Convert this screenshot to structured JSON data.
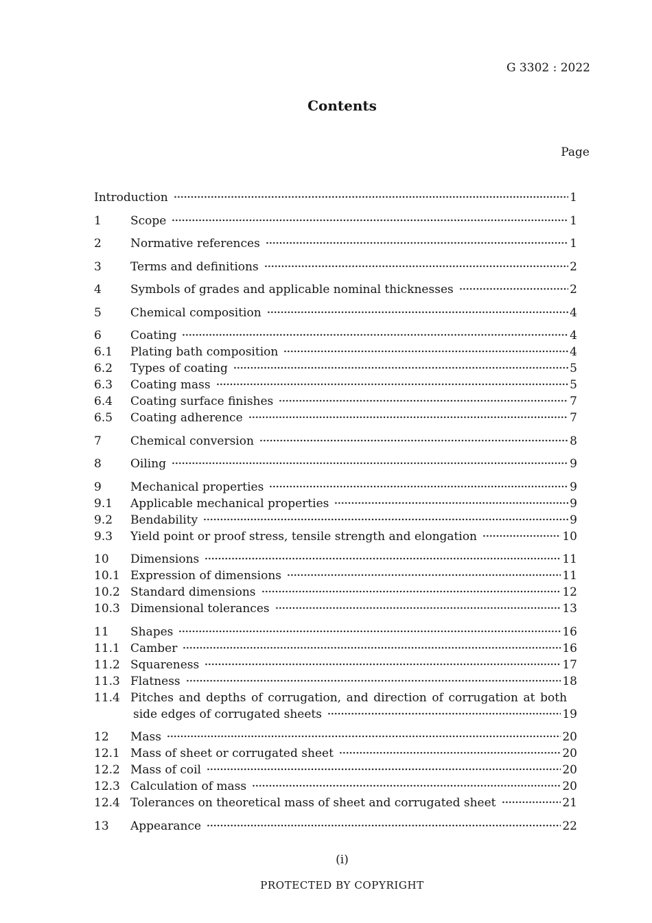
{
  "doc": {
    "code": "G 3302 : 2022",
    "title": "Contents",
    "page_label": "Page",
    "page_indicator": "(i)",
    "copyright": "PROTECTED BY COPYRIGHT"
  },
  "toc": {
    "entries": [
      {
        "num": "",
        "title": "Introduction",
        "page": "1"
      },
      {
        "num": "1",
        "title": "Scope",
        "page": "1"
      },
      {
        "num": "2",
        "title": "Normative references",
        "page": "1"
      },
      {
        "num": "3",
        "title": "Terms and definitions",
        "page": "2"
      },
      {
        "num": "4",
        "title": "Symbols of grades and applicable nominal thicknesses",
        "page": "2"
      },
      {
        "num": "5",
        "title": "Chemical composition",
        "page": "4"
      },
      {
        "num": "6",
        "title": "Coating",
        "page": "4"
      },
      {
        "num": "6.1",
        "title": "Plating bath composition",
        "page": "4"
      },
      {
        "num": "6.2",
        "title": "Types of coating",
        "page": "5"
      },
      {
        "num": "6.3",
        "title": "Coating mass",
        "page": "5"
      },
      {
        "num": "6.4",
        "title": "Coating surface finishes",
        "page": "7"
      },
      {
        "num": "6.5",
        "title": "Coating adherence",
        "page": "7"
      },
      {
        "num": "7",
        "title": "Chemical conversion",
        "page": "8"
      },
      {
        "num": "8",
        "title": "Oiling",
        "page": "9"
      },
      {
        "num": "9",
        "title": "Mechanical properties",
        "page": "9"
      },
      {
        "num": "9.1",
        "title": "Applicable mechanical properties",
        "page": "9"
      },
      {
        "num": "9.2",
        "title": "Bendability",
        "page": "9"
      },
      {
        "num": "9.3",
        "title": "Yield point or proof stress, tensile strength and elongation",
        "page": "10"
      },
      {
        "num": "10",
        "title": "Dimensions",
        "page": "11"
      },
      {
        "num": "10.1",
        "title": "Expression of dimensions",
        "page": "11"
      },
      {
        "num": "10.2",
        "title": "Standard dimensions",
        "page": "12"
      },
      {
        "num": "10.3",
        "title": "Dimensional tolerances",
        "page": "13"
      },
      {
        "num": "11",
        "title": "Shapes",
        "page": "16"
      },
      {
        "num": "11.1",
        "title": "Camber",
        "page": "16"
      },
      {
        "num": "11.2",
        "title": "Squareness",
        "page": "17"
      },
      {
        "num": "11.3",
        "title": "Flatness",
        "page": "18"
      },
      {
        "num": "11.4",
        "title": "Pitches and depths of corrugation, and direction of corrugation at both",
        "title2": "side edges of corrugated sheets",
        "page": "19"
      },
      {
        "num": "12",
        "title": "Mass",
        "page": "20"
      },
      {
        "num": "12.1",
        "title": "Mass of sheet or corrugated sheet",
        "page": "20"
      },
      {
        "num": "12.2",
        "title": "Mass of coil",
        "page": "20"
      },
      {
        "num": "12.3",
        "title": "Calculation of mass",
        "page": "20"
      },
      {
        "num": "12.4",
        "title": "Tolerances on theoretical mass of sheet and corrugated sheet",
        "page": "21"
      },
      {
        "num": "13",
        "title": "Appearance",
        "page": "22"
      }
    ]
  }
}
